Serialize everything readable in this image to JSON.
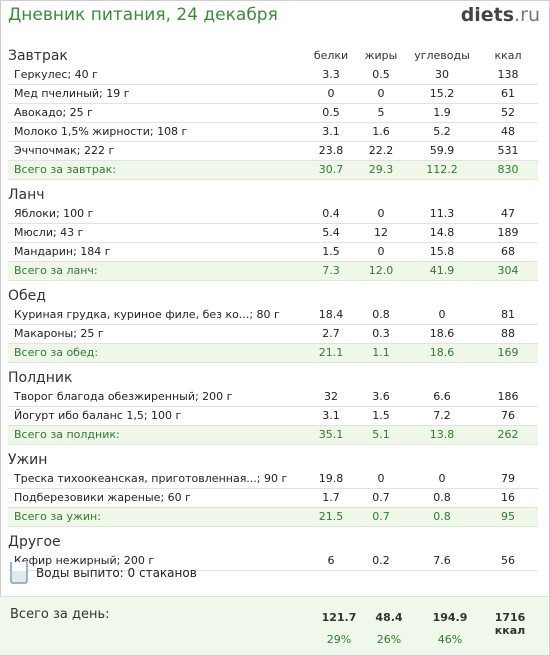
{
  "header": {
    "title": "Дневник питания, 24 декабря",
    "logo_main": "diets",
    "logo_suffix": ".ru"
  },
  "columns": {
    "protein": "белки",
    "fat": "жиры",
    "carbs": "углеводы",
    "kcal": "ккал"
  },
  "sections": [
    {
      "title": "Завтрак",
      "rows": [
        [
          "Геркулес; 40 г",
          "3.3",
          "0.5",
          "30",
          "138"
        ],
        [
          "Мед пчелиный; 19 г",
          "0",
          "0",
          "15.2",
          "61"
        ],
        [
          "Авокадо; 25 г",
          "0.5",
          "5",
          "1.9",
          "52"
        ],
        [
          "Молоко 1,5% жирности; 108 г",
          "3.1",
          "1.6",
          "5.2",
          "48"
        ],
        [
          "Эччпочмак; 222 г",
          "23.8",
          "22.2",
          "59.9",
          "531"
        ]
      ],
      "total": [
        "Всего за завтрак:",
        "30.7",
        "29.3",
        "112.2",
        "830"
      ]
    },
    {
      "title": "Ланч",
      "rows": [
        [
          "Яблоки; 100 г",
          "0.4",
          "0",
          "11.3",
          "47"
        ],
        [
          "Мюсли; 43 г",
          "5.4",
          "12",
          "14.8",
          "189"
        ],
        [
          "Мандарин; 184 г",
          "1.5",
          "0",
          "15.8",
          "68"
        ]
      ],
      "total": [
        "Всего за ланч:",
        "7.3",
        "12.0",
        "41.9",
        "304"
      ]
    },
    {
      "title": "Обед",
      "rows": [
        [
          "Куриная грудка, куриное филе, без ко...; 80 г",
          "18.4",
          "0.8",
          "0",
          "81"
        ],
        [
          "Макароны; 25 г",
          "2.7",
          "0.3",
          "18.6",
          "88"
        ]
      ],
      "total": [
        "Всего за обед:",
        "21.1",
        "1.1",
        "18.6",
        "169"
      ]
    },
    {
      "title": "Полдник",
      "rows": [
        [
          "Творог благода обезжиренный; 200 г",
          "32",
          "3.6",
          "6.6",
          "186"
        ],
        [
          "Йогурт ибо баланс 1,5; 100 г",
          "3.1",
          "1.5",
          "7.2",
          "76"
        ]
      ],
      "total": [
        "Всего за полдник:",
        "35.1",
        "5.1",
        "13.8",
        "262"
      ]
    },
    {
      "title": "Ужин",
      "rows": [
        [
          "Треска тихоокеанская, приготовленная...; 90 г",
          "19.8",
          "0",
          "0",
          "79"
        ],
        [
          "Подберезовики жареные; 60 г",
          "1.7",
          "0.7",
          "0.8",
          "16"
        ]
      ],
      "total": [
        "Всего за ужин:",
        "21.5",
        "0.7",
        "0.8",
        "95"
      ]
    },
    {
      "title": "Другое",
      "rows": [
        [
          "Кефир нежирный; 200 г",
          "6",
          "0.2",
          "7.6",
          "56"
        ]
      ],
      "total": null
    }
  ],
  "water": {
    "text": "Воды выпито: 0 стаканов"
  },
  "day_total": {
    "label": "Всего за день:",
    "protein": "121.7",
    "fat": "48.4",
    "carbs": "194.9",
    "kcal": "1716 ккал",
    "protein_pct": "29%",
    "fat_pct": "26%",
    "carbs_pct": "46%"
  }
}
